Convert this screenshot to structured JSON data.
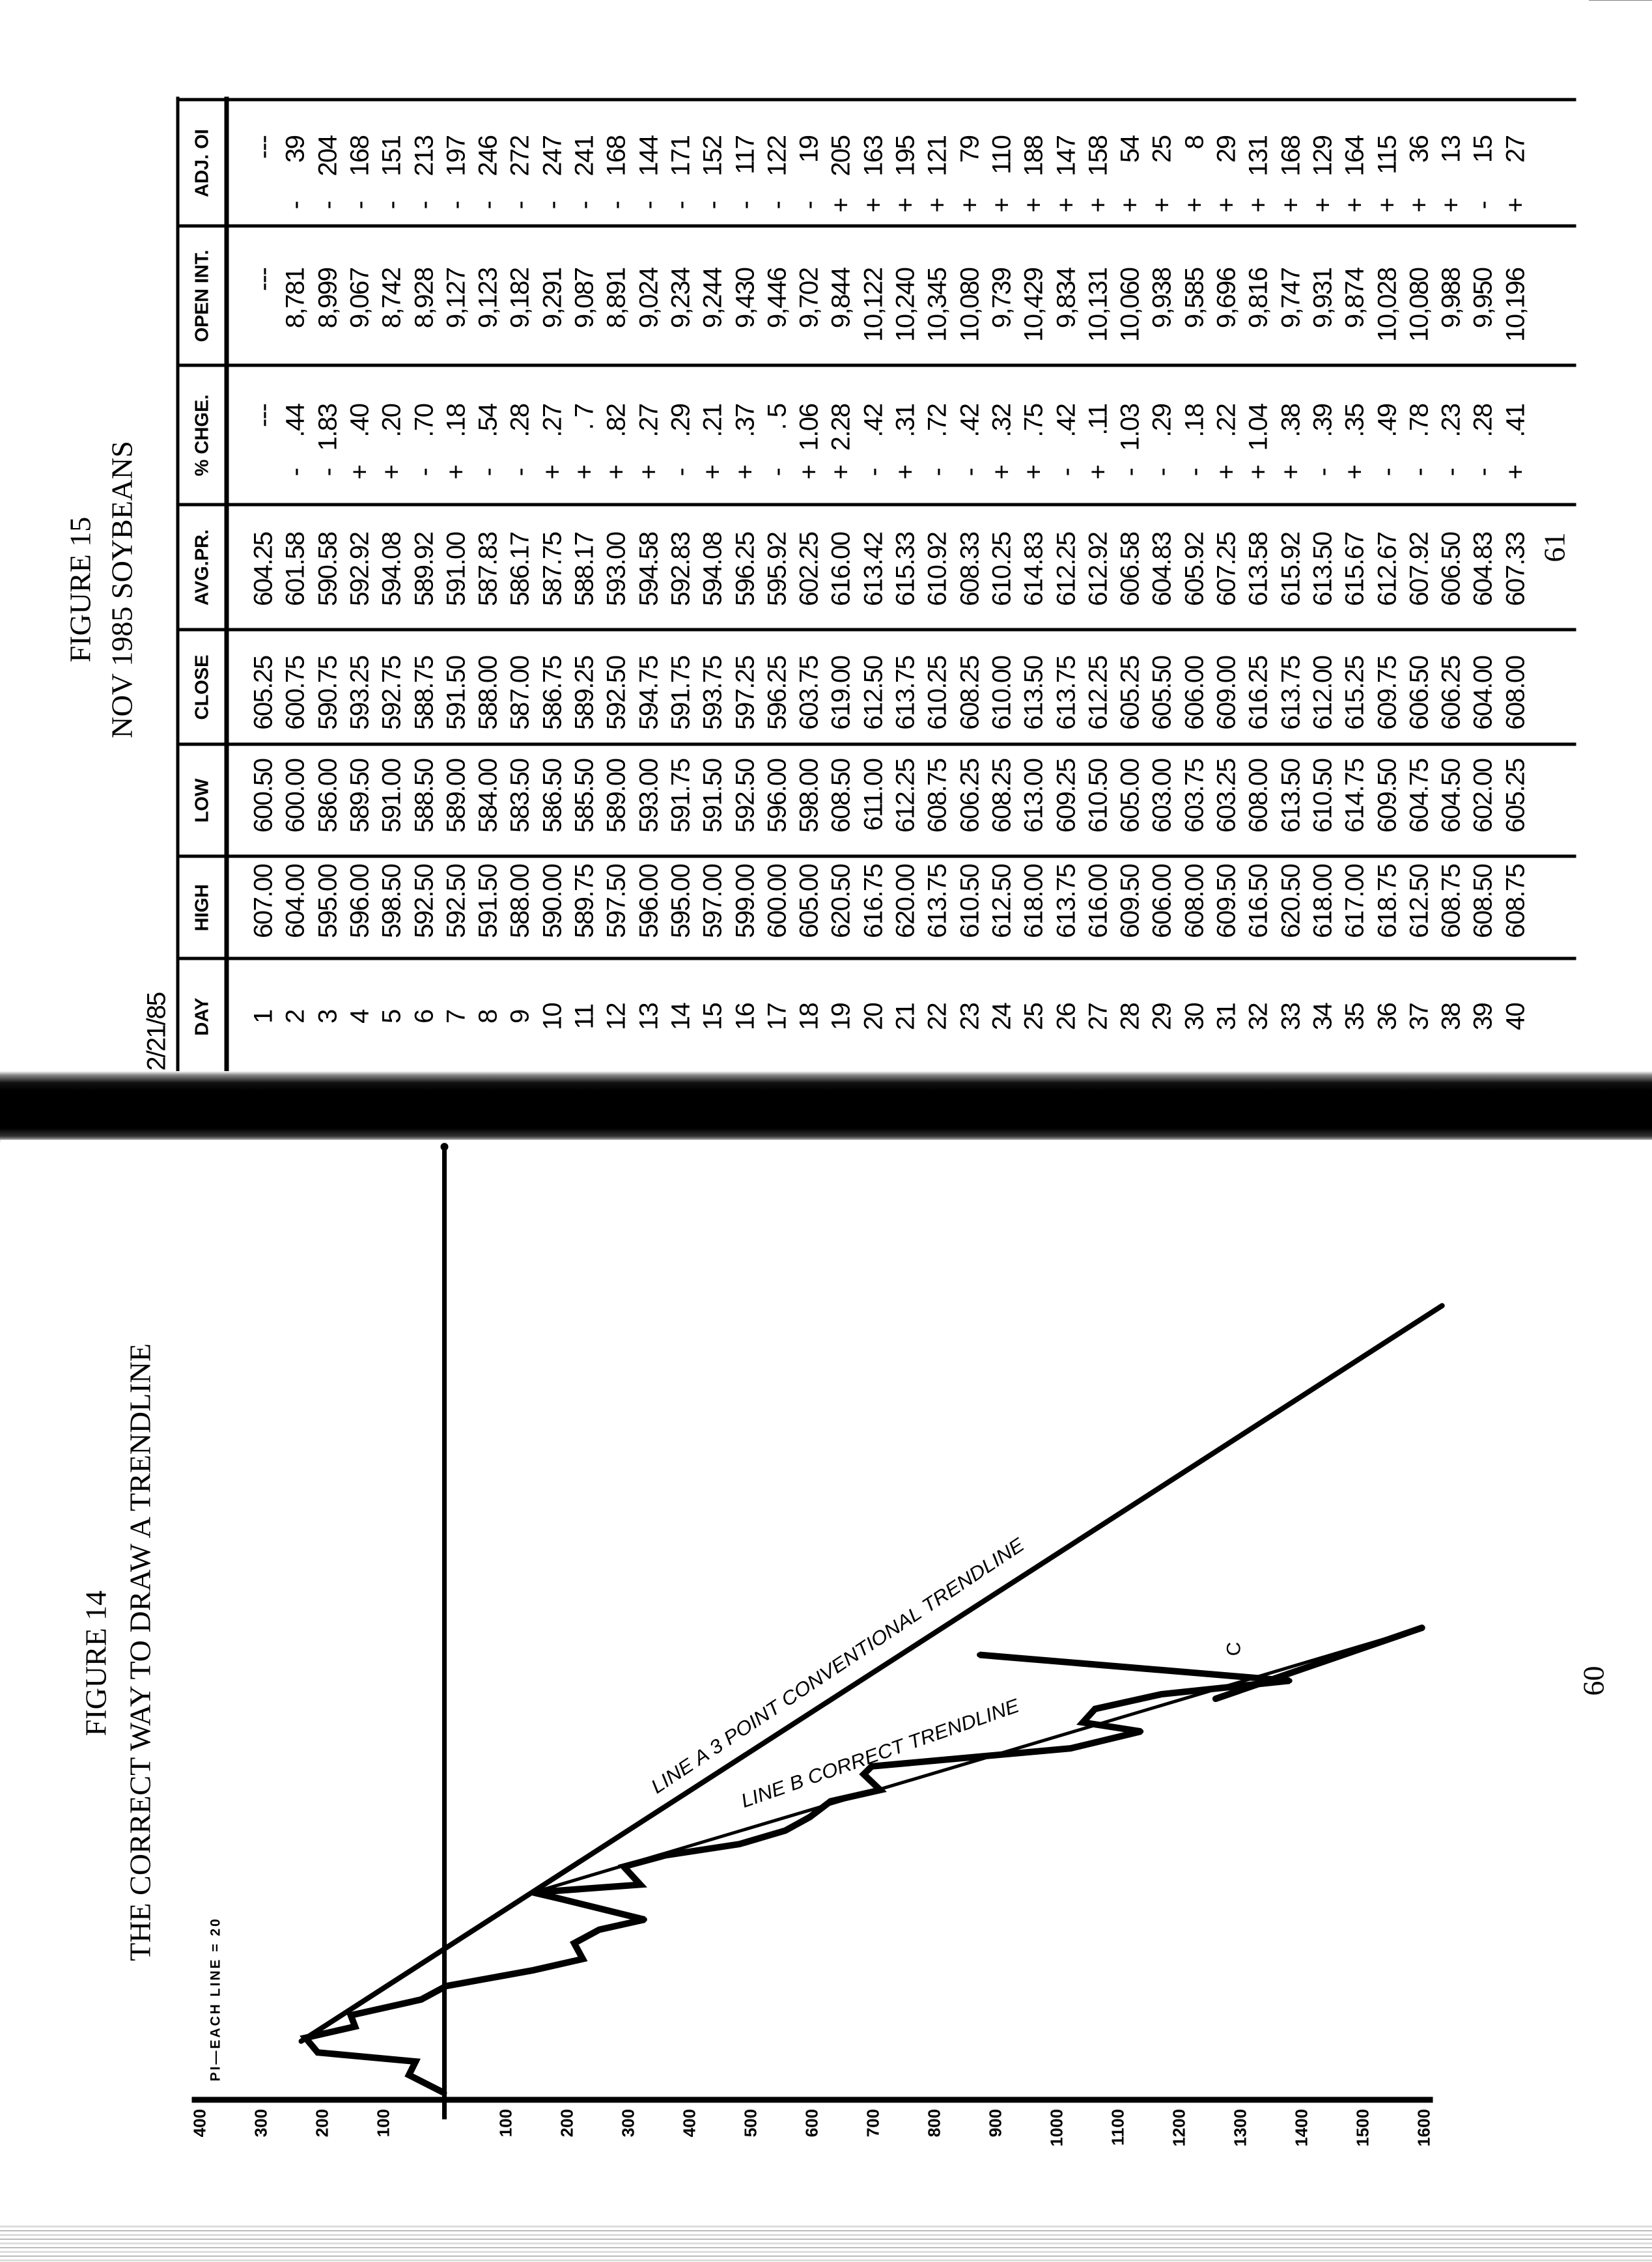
{
  "right_page": {
    "figure_label": "FIGURE 15",
    "title": "NOV 1985 SOYBEANS",
    "date": "2/21/85",
    "page_number": "61",
    "table": {
      "headers": [
        "DAY",
        "HIGH",
        "LOW",
        "CLOSE",
        "AVG.PR.",
        "% CHGE.",
        "OPEN INT.",
        "ADJ. OI"
      ],
      "row_fields": [
        "day",
        "high",
        "low",
        "close",
        "avg_pr",
        "chg_sign",
        "chg",
        "open_int",
        "adj_sign",
        "adj_oi"
      ],
      "rows": [
        [
          "1",
          "607.00",
          "600.50",
          "605.25",
          "604.25",
          "",
          "---",
          "---",
          "",
          "---"
        ],
        [
          "2",
          "604.00",
          "600.00",
          "600.75",
          "601.58",
          "-",
          ".44",
          "8,781",
          "-",
          "39"
        ],
        [
          "3",
          "595.00",
          "586.00",
          "590.75",
          "590.58",
          "-",
          "1.83",
          "8,999",
          "-",
          "204"
        ],
        [
          "4",
          "596.00",
          "589.50",
          "593.25",
          "592.92",
          "+",
          ".40",
          "9,067",
          "-",
          "168"
        ],
        [
          "5",
          "598.50",
          "591.00",
          "592.75",
          "594.08",
          "+",
          ".20",
          "8,742",
          "-",
          "151"
        ],
        [
          "6",
          "592.50",
          "588.50",
          "588.75",
          "589.92",
          "-",
          ".70",
          "8,928",
          "-",
          "213"
        ],
        [
          "7",
          "592.50",
          "589.00",
          "591.50",
          "591.00",
          "+",
          ".18",
          "9,127",
          "-",
          "197"
        ],
        [
          "8",
          "591.50",
          "584.00",
          "588.00",
          "587.83",
          "-",
          ".54",
          "9,123",
          "-",
          "246"
        ],
        [
          "9",
          "588.00",
          "583.50",
          "587.00",
          "586.17",
          "-",
          ".28",
          "9,182",
          "-",
          "272"
        ],
        [
          "10",
          "590.00",
          "586.50",
          "586.75",
          "587.75",
          "+",
          ".27",
          "9,291",
          "-",
          "247"
        ],
        [
          "11",
          "589.75",
          "585.50",
          "589.25",
          "588.17",
          "+",
          ". 7",
          "9,087",
          "-",
          "241"
        ],
        [
          "12",
          "597.50",
          "589.00",
          "592.50",
          "593.00",
          "+",
          ".82",
          "8,891",
          "-",
          "168"
        ],
        [
          "13",
          "596.00",
          "593.00",
          "594.75",
          "594.58",
          "+",
          ".27",
          "9,024",
          "-",
          "144"
        ],
        [
          "14",
          "595.00",
          "591.75",
          "591.75",
          "592.83",
          "-",
          ".29",
          "9,234",
          "-",
          "171"
        ],
        [
          "15",
          "597.00",
          "591.50",
          "593.75",
          "594.08",
          "+",
          ".21",
          "9,244",
          "-",
          "152"
        ],
        [
          "16",
          "599.00",
          "592.50",
          "597.25",
          "596.25",
          "+",
          ".37",
          "9,430",
          "-",
          "117"
        ],
        [
          "17",
          "600.00",
          "596.00",
          "596.25",
          "595.92",
          "-",
          ". 5",
          "9,446",
          "-",
          "122"
        ],
        [
          "18",
          "605.00",
          "598.00",
          "603.75",
          "602.25",
          "+",
          "1.06",
          "9,702",
          "-",
          "19"
        ],
        [
          "19",
          "620.50",
          "608.50",
          "619.00",
          "616.00",
          "+",
          "2.28",
          "9,844",
          "+",
          "205"
        ],
        [
          "20",
          "616.75",
          "611.00",
          "612.50",
          "613.42",
          "-",
          ".42",
          "10,122",
          "+",
          "163"
        ],
        [
          "21",
          "620.00",
          "612.25",
          "613.75",
          "615.33",
          "+",
          ".31",
          "10,240",
          "+",
          "195"
        ],
        [
          "22",
          "613.75",
          "608.75",
          "610.25",
          "610.92",
          "-",
          ".72",
          "10,345",
          "+",
          "121"
        ],
        [
          "23",
          "610.50",
          "606.25",
          "608.25",
          "608.33",
          "-",
          ".42",
          "10,080",
          "+",
          "79"
        ],
        [
          "24",
          "612.50",
          "608.25",
          "610.00",
          "610.25",
          "+",
          ".32",
          "9,739",
          "+",
          "110"
        ],
        [
          "25",
          "618.00",
          "613.00",
          "613.50",
          "614.83",
          "+",
          ".75",
          "10,429",
          "+",
          "188"
        ],
        [
          "26",
          "613.75",
          "609.25",
          "613.75",
          "612.25",
          "-",
          ".42",
          "9,834",
          "+",
          "147"
        ],
        [
          "27",
          "616.00",
          "610.50",
          "612.25",
          "612.92",
          "+",
          ".11",
          "10,131",
          "+",
          "158"
        ],
        [
          "28",
          "609.50",
          "605.00",
          "605.25",
          "606.58",
          "-",
          "1.03",
          "10,060",
          "+",
          "54"
        ],
        [
          "29",
          "606.00",
          "603.00",
          "605.50",
          "604.83",
          "-",
          ".29",
          "9,938",
          "+",
          "25"
        ],
        [
          "30",
          "608.00",
          "603.75",
          "606.00",
          "605.92",
          "-",
          ".18",
          "9,585",
          "+",
          "8"
        ],
        [
          "31",
          "609.50",
          "603.25",
          "609.00",
          "607.25",
          "+",
          ".22",
          "9,696",
          "+",
          "29"
        ],
        [
          "32",
          "616.50",
          "608.00",
          "616.25",
          "613.58",
          "+",
          "1.04",
          "9,816",
          "+",
          "131"
        ],
        [
          "33",
          "620.50",
          "613.50",
          "613.75",
          "615.92",
          "+",
          ".38",
          "9,747",
          "+",
          "168"
        ],
        [
          "34",
          "618.00",
          "610.50",
          "612.00",
          "613.50",
          "-",
          ".39",
          "9,931",
          "+",
          "129"
        ],
        [
          "35",
          "617.00",
          "614.75",
          "615.25",
          "615.67",
          "+",
          ".35",
          "9,874",
          "+",
          "164"
        ],
        [
          "36",
          "618.75",
          "609.50",
          "609.75",
          "612.67",
          "-",
          ".49",
          "10,028",
          "+",
          "115"
        ],
        [
          "37",
          "612.50",
          "604.75",
          "606.50",
          "607.92",
          "-",
          ".78",
          "10,080",
          "+",
          "36"
        ],
        [
          "38",
          "608.75",
          "604.50",
          "606.25",
          "606.50",
          "-",
          ".23",
          "9,988",
          "+",
          "13"
        ],
        [
          "39",
          "608.50",
          "602.00",
          "604.00",
          "604.83",
          "-",
          ".28",
          "9,950",
          "-",
          "15"
        ],
        [
          "40",
          "608.75",
          "605.25",
          "608.00",
          "607.33",
          "+",
          ".41",
          "10,196",
          "+",
          "27"
        ]
      ]
    }
  },
  "left_page": {
    "figure_label": "FIGURE 14",
    "title": "THE CORRECT WAY TO DRAW A TRENDLINE",
    "page_number": "60"
  },
  "chart_data": {
    "type": "line",
    "ylabel": "PI—EACH LINE = 20",
    "xlabel": "",
    "ylim": [
      -1600,
      400
    ],
    "xlim": [
      0.4,
      85
    ],
    "grid": false,
    "y_ticks": [
      400,
      300,
      200,
      100,
      -100,
      -200,
      -300,
      -400,
      -500,
      -600,
      -700,
      -800,
      -900,
      -1000,
      -1100,
      -1200,
      -1300,
      -1400,
      -1500,
      -1600
    ],
    "y_tick_labels": [
      "400",
      "300",
      "200",
      "100",
      "100",
      "200",
      "300",
      "400",
      "500",
      "600",
      "700",
      "800",
      "900",
      "1000",
      "1100",
      "1200",
      "1300",
      "1400",
      "1500",
      "1600"
    ],
    "series": [
      {
        "points": [
          [
            1,
            0
          ],
          [
            2.6,
            58
          ],
          [
            3.8,
            47
          ],
          [
            4.6,
            207
          ],
          [
            5.9,
            227
          ],
          [
            6.9,
            146
          ],
          [
            7.9,
            153
          ],
          [
            9.3,
            38
          ],
          [
            10.5,
            -3
          ],
          [
            11.9,
            -145
          ],
          [
            12.9,
            -226
          ],
          [
            14.3,
            -212
          ],
          [
            15.5,
            -253
          ],
          [
            16.4,
            -327
          ],
          [
            18.3,
            -185
          ],
          [
            18.8,
            -145
          ],
          [
            19.5,
            -320
          ],
          [
            21.1,
            -293
          ],
          [
            22.1,
            -361
          ],
          [
            23.1,
            -482
          ],
          [
            24.3,
            -557
          ],
          [
            25.5,
            -597
          ],
          [
            26.9,
            -631
          ],
          [
            27.9,
            -712
          ],
          [
            29.3,
            -685
          ],
          [
            30.0,
            -698
          ],
          [
            31.6,
            -1023
          ],
          [
            33.1,
            -1138
          ],
          [
            33.9,
            -1043
          ],
          [
            35.1,
            -1063
          ],
          [
            36.4,
            -1171
          ],
          [
            37.6,
            -1381
          ],
          [
            39.9,
            -874
          ]
        ]
      }
    ],
    "trendlines": [
      {
        "label": "LINE A   3 POINT CONVENTIONAL TRENDLINE",
        "from": [
          5.6,
          234
        ],
        "to": [
          70.9,
          -1630
        ]
      },
      {
        "label": "LINE B   CORRECT TRENDLINE",
        "from": [
          18.8,
          -145
        ],
        "to": [
          42.3,
          -1597
        ]
      }
    ],
    "annotations": [
      {
        "text": "C",
        "at": [
          39.8,
          -1300
        ]
      }
    ]
  }
}
